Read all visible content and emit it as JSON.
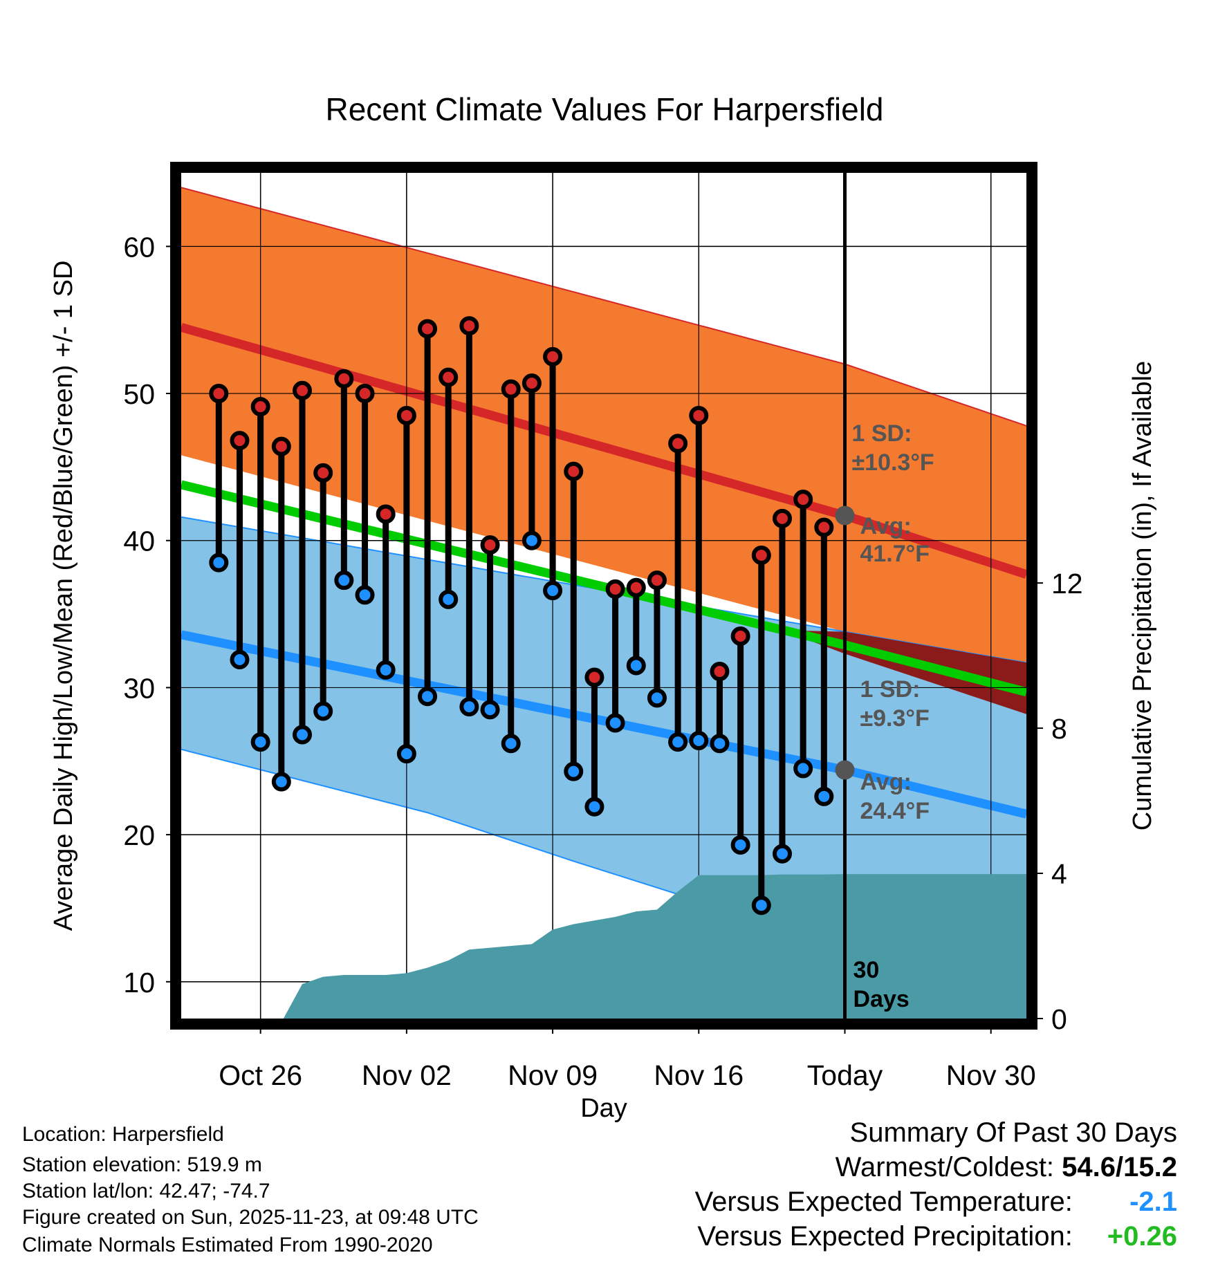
{
  "chart_data": {
    "type": "line",
    "title": "Recent Climate Values For Harpersfield",
    "xlabel": "Day",
    "ylabel": "Average Daily High/Low/Mean (Red/Blue/Green) +/- 1 SD",
    "y2label": "Cumulative Precipitation (in), If Available",
    "ylim": [
      7.5,
      65
    ],
    "y2lim": [
      0,
      23.3
    ],
    "xlim": [
      -1.8,
      38.7
    ],
    "x_ticks": [
      {
        "x": 2,
        "label": "Oct 26"
      },
      {
        "x": 9,
        "label": "Nov 02"
      },
      {
        "x": 16,
        "label": "Nov 09"
      },
      {
        "x": 23,
        "label": "Nov 16"
      },
      {
        "x": 30,
        "label": "Today"
      },
      {
        "x": 37,
        "label": "Nov 30"
      }
    ],
    "y_ticks": [
      10,
      20,
      30,
      40,
      50,
      60
    ],
    "y2_ticks": [
      0,
      4,
      8,
      12
    ],
    "today_x": 30,
    "window_label": [
      "30",
      "Days"
    ],
    "normals": {
      "high_mean": [
        [
          -1.8,
          54.5
        ],
        [
          30,
          41.7
        ],
        [
          38.7,
          37.7
        ]
      ],
      "high_upper": [
        [
          -1.8,
          64.0
        ],
        [
          30,
          52.0
        ],
        [
          38.7,
          47.8
        ]
      ],
      "high_lower": [
        [
          -1.8,
          45.8
        ],
        [
          30,
          33.8
        ],
        [
          38.7,
          31.7
        ]
      ],
      "mean_line": [
        [
          -1.8,
          43.8
        ],
        [
          30,
          32.9
        ],
        [
          38.7,
          29.7
        ]
      ],
      "low_mean": [
        [
          -1.8,
          33.6
        ],
        [
          30,
          24.4
        ],
        [
          38.7,
          21.4
        ]
      ],
      "low_upper": [
        [
          -1.8,
          41.6
        ],
        [
          30,
          33.8
        ],
        [
          38.7,
          31.7
        ]
      ],
      "low_lower": [
        [
          -1.8,
          25.8
        ],
        [
          10,
          21.5
        ],
        [
          17,
          18.2
        ],
        [
          23,
          15.5
        ],
        [
          30,
          15.2
        ],
        [
          38.7,
          15.2
        ]
      ]
    },
    "annotations": {
      "high_sd": [
        "1 SD:",
        "±10.3°F"
      ],
      "high_avg": [
        "Avg:",
        "41.7°F"
      ],
      "low_sd": [
        "1 SD:",
        "±9.3°F"
      ],
      "low_avg": [
        "Avg:",
        "24.4°F"
      ],
      "high_avg_value": 41.7,
      "low_avg_value": 24.4
    },
    "series": [
      {
        "name": "Daily High",
        "color": "#d62728",
        "x": [
          0,
          1,
          2,
          3,
          4,
          5,
          6,
          7,
          8,
          9,
          10,
          11,
          12,
          13,
          14,
          15,
          16,
          17,
          18,
          19,
          20,
          21,
          22,
          23,
          24,
          25,
          26,
          27,
          28,
          29
        ],
        "values": [
          50.0,
          46.8,
          49.1,
          46.4,
          50.2,
          44.6,
          51.0,
          50.0,
          41.8,
          48.5,
          54.4,
          51.1,
          54.6,
          39.7,
          50.3,
          50.7,
          52.5,
          44.7,
          30.7,
          36.7,
          36.8,
          37.3,
          46.6,
          48.5,
          31.1,
          33.5,
          39.0,
          41.5,
          42.8,
          40.9
        ]
      },
      {
        "name": "Daily Low",
        "color": "#1e90ff",
        "x": [
          0,
          1,
          2,
          3,
          4,
          5,
          6,
          7,
          8,
          9,
          10,
          11,
          12,
          13,
          14,
          15,
          16,
          17,
          18,
          19,
          20,
          21,
          22,
          23,
          24,
          25,
          26,
          27,
          28,
          29
        ],
        "values": [
          38.5,
          31.9,
          26.3,
          23.6,
          26.8,
          28.4,
          37.3,
          36.3,
          31.2,
          25.5,
          29.4,
          36.0,
          28.7,
          28.5,
          26.2,
          40.0,
          36.6,
          24.3,
          21.9,
          27.6,
          31.5,
          29.3,
          26.3,
          26.4,
          26.2,
          19.3,
          15.2,
          18.7,
          24.5,
          22.6
        ]
      },
      {
        "name": "Cumulative Precipitation (in)",
        "color": "#4a9ba5",
        "x": [
          3.1,
          4,
          5,
          6,
          7,
          8,
          9,
          10,
          11,
          12,
          13,
          14,
          15,
          16,
          17,
          18,
          19,
          20,
          21,
          22,
          23,
          24,
          25,
          26,
          27,
          28,
          29,
          30,
          38.7
        ],
        "values": [
          0,
          0.95,
          1.15,
          1.2,
          1.2,
          1.2,
          1.25,
          1.4,
          1.6,
          1.9,
          1.95,
          2.0,
          2.05,
          2.45,
          2.6,
          2.7,
          2.8,
          2.95,
          3.0,
          3.5,
          3.95,
          3.95,
          3.95,
          3.95,
          3.97,
          3.97,
          3.97,
          3.98,
          3.98
        ]
      }
    ]
  },
  "info": {
    "location": "Location: Harpersfield",
    "elevation": "Station elevation: 519.9 m",
    "latlon": "Station lat/lon: 42.47; -74.7",
    "created": "Figure created on Sun, 2025-11-23, at 09:48 UTC",
    "normals": "Climate Normals Estimated From 1990-2020"
  },
  "summary": {
    "heading": "Summary Of Past 30 Days",
    "warm_cold_label": "Warmest/Coldest:",
    "warm_cold_value": "54.6/15.2",
    "temp_label": "Versus Expected Temperature:",
    "temp_value": "-2.1",
    "temp_color": "#1e90ff",
    "precip_label": "Versus Expected Precipitation:",
    "precip_value": "+0.26",
    "precip_color": "#22bb22"
  },
  "colors": {
    "high_band": "#f47a30",
    "high_line": "#d62728",
    "low_band": "#85c2e8",
    "low_line": "#1e90ff",
    "mean_line": "#00cc00",
    "overlap": "#8b1a1a",
    "precip": "#4a9ba5"
  }
}
